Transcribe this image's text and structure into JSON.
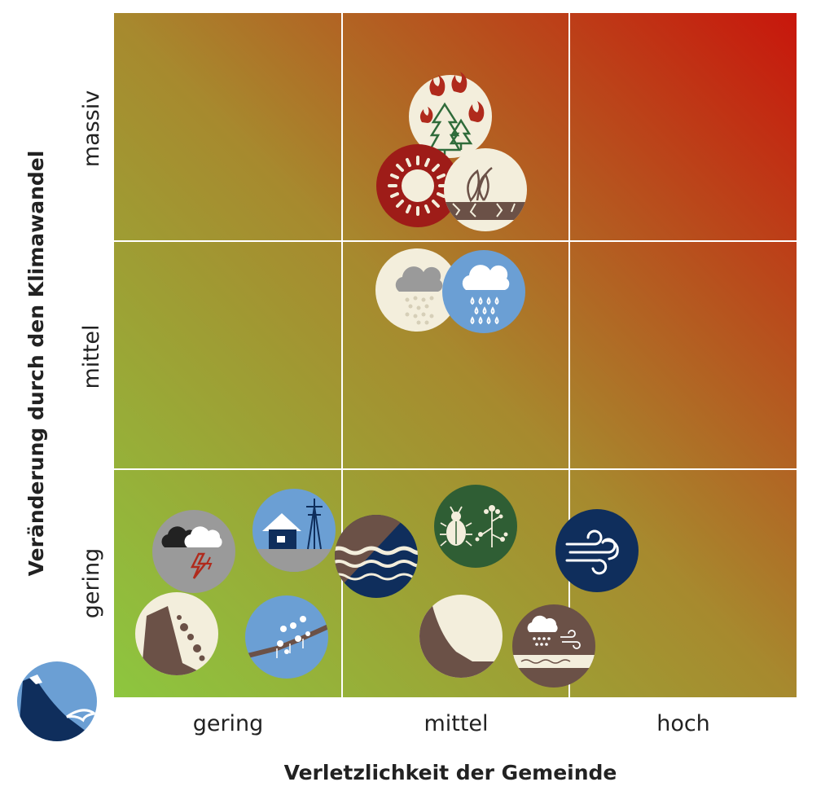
{
  "x_axis": {
    "title": "Verletzlichkeit der Gemeinde",
    "ticks": [
      "gering",
      "mittel",
      "hoch"
    ]
  },
  "y_axis": {
    "title": "Veränderung durch den Klimawandel",
    "ticks": [
      "gering",
      "mittel",
      "massiv"
    ]
  },
  "colors": {
    "low": "#8dc63f",
    "mid": "#a7892e",
    "high": "#c8160c",
    "grid": "#ffffff",
    "cream": "#f3eedc",
    "brown": "#6b5147",
    "dark_red": "#9e1c18",
    "blue": "#6b9fd4",
    "navy": "#0f2e5c",
    "dark_green": "#2f5e34",
    "grey": "#9a9a9a"
  },
  "hazards": [
    {
      "icon": "forest-fire-icon",
      "x_level": "mittel",
      "y_level": "massiv"
    },
    {
      "icon": "heat-sun-icon",
      "x_level": "mittel",
      "y_level": "massiv"
    },
    {
      "icon": "drought-icon",
      "x_level": "mittel",
      "y_level": "massiv"
    },
    {
      "icon": "hail-icon",
      "x_level": "mittel",
      "y_level": "mittel"
    },
    {
      "icon": "heavy-rain-icon",
      "x_level": "mittel",
      "y_level": "mittel"
    },
    {
      "icon": "thunderstorm-icon",
      "x_level": "gering",
      "y_level": "gering"
    },
    {
      "icon": "snow-load-icon",
      "x_level": "gering",
      "y_level": "gering"
    },
    {
      "icon": "rockfall-icon",
      "x_level": "gering",
      "y_level": "gering"
    },
    {
      "icon": "frost-icon",
      "x_level": "gering",
      "y_level": "gering"
    },
    {
      "icon": "flood-icon",
      "x_level": "mittel",
      "y_level": "gering"
    },
    {
      "icon": "pests-plants-icon",
      "x_level": "mittel",
      "y_level": "gering"
    },
    {
      "icon": "landslide-icon",
      "x_level": "mittel",
      "y_level": "gering"
    },
    {
      "icon": "mixed-weather-icon",
      "x_level": "mittel",
      "y_level": "gering"
    },
    {
      "icon": "storm-wind-icon",
      "x_level": "hoch",
      "y_level": "gering"
    }
  ],
  "logo": {
    "icon": "avalanche-icon"
  }
}
